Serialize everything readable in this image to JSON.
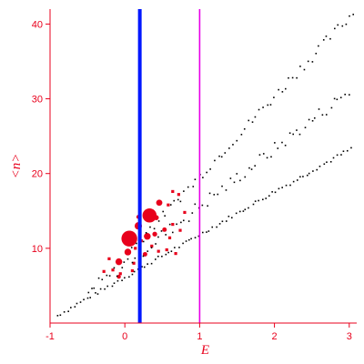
{
  "chart_data": {
    "type": "scatter",
    "title": "",
    "xlabel": "E",
    "ylabel": "<n>",
    "xlim": [
      -1,
      3.1
    ],
    "ylim": [
      0,
      42
    ],
    "xticks": [
      -1,
      0,
      1,
      2,
      3
    ],
    "yticks": [
      10,
      20,
      30,
      40
    ],
    "grid": false,
    "colors": {
      "axis": "#e8001c",
      "vline_blue": "#0018ff",
      "vline_magenta": "#e800e8",
      "red_points": "#e8001c",
      "black_points": "#000000"
    },
    "vlines": [
      {
        "name": "blue-line",
        "x": 0.2,
        "color": "#0018ff"
      },
      {
        "name": "magenta-line",
        "x": 1.0,
        "color": "#e800e8"
      }
    ],
    "series": [
      {
        "color": "#e8001c",
        "marker": "circle",
        "points": [
          {
            "x": 0.06,
            "y": 11.3,
            "size": 5.6
          },
          {
            "x": 0.33,
            "y": 14.4,
            "size": 5.0
          },
          {
            "x": 0.18,
            "y": 13.0,
            "size": 2.6
          },
          {
            "x": 0.04,
            "y": 9.5,
            "size": 2.4
          },
          {
            "x": 0.3,
            "y": 11.6,
            "size": 2.4
          },
          {
            "x": 0.46,
            "y": 16.1,
            "size": 2.2
          },
          {
            "x": -0.08,
            "y": 8.2,
            "size": 2.4
          },
          {
            "x": 0.42,
            "y": 14.1,
            "size": 1.8
          },
          {
            "x": 0.4,
            "y": 11.9,
            "size": 1.7
          },
          {
            "x": 0.27,
            "y": 9.2,
            "size": 1.6
          },
          {
            "x": 0.53,
            "y": 12.5,
            "size": 1.6
          },
          {
            "x": -0.08,
            "y": 6.2,
            "size": 1.4
          },
          {
            "x": 0.18,
            "y": 14.2,
            "size": 1.4
          }
        ]
      },
      {
        "color": "#e8001c",
        "marker": "square",
        "points": [
          {
            "x": 0.64,
            "y": 17.6
          },
          {
            "x": 0.72,
            "y": 17.2
          },
          {
            "x": 0.58,
            "y": 15.8
          },
          {
            "x": 0.64,
            "y": 13.2
          },
          {
            "x": 0.6,
            "y": 11.4
          },
          {
            "x": 0.45,
            "y": 9.6
          },
          {
            "x": 0.56,
            "y": 9.8
          },
          {
            "x": 0.68,
            "y": 9.3
          },
          {
            "x": 0.22,
            "y": 11.0
          },
          {
            "x": 0.14,
            "y": 10.0
          },
          {
            "x": 0.12,
            "y": 8.0
          },
          {
            "x": 0.1,
            "y": 7.0
          },
          {
            "x": -0.21,
            "y": 8.6
          },
          {
            "x": -0.16,
            "y": 7.1
          },
          {
            "x": -0.06,
            "y": 6.6
          },
          {
            "x": -0.28,
            "y": 6.9
          },
          {
            "x": 0.36,
            "y": 10.3
          },
          {
            "x": 0.74,
            "y": 12.4
          },
          {
            "x": 0.8,
            "y": 14.8
          },
          {
            "x": 0.08,
            "y": 12.0
          }
        ]
      },
      {
        "color": "#000000",
        "marker": "dot",
        "bands": [
          {
            "x0": -0.9,
            "x1": 3.05,
            "y0": 1.0,
            "y1": 23.5,
            "step": 0.045,
            "jitter": 0.25
          },
          {
            "x0": -0.5,
            "x1": 3.0,
            "y0": 4.0,
            "y1": 31.0,
            "step": 0.05,
            "jitter": 0.9
          },
          {
            "x0": 0.1,
            "x1": 3.05,
            "y0": 10.0,
            "y1": 41.5,
            "step": 0.05,
            "jitter": 0.7
          }
        ]
      }
    ]
  }
}
